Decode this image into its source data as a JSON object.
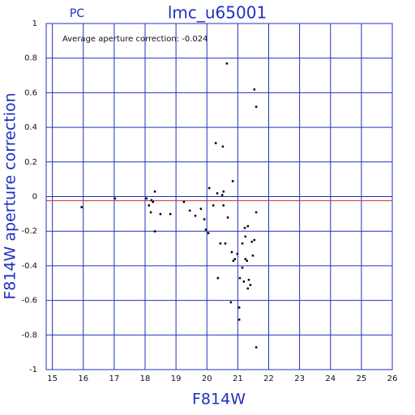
{
  "chart_data": {
    "type": "scatter",
    "title": "lmc_u65001",
    "subtitle": "PC",
    "annotation": "Average aperture correction: -0.024",
    "reference_line": {
      "value": -0.024,
      "color": "#d03020"
    },
    "x_label": "F814W",
    "y_label": "F814W aperture correction",
    "xlim": [
      14.8,
      26
    ],
    "ylim": [
      -1,
      1
    ],
    "xticks": [
      15,
      16,
      17,
      18,
      19,
      20,
      21,
      22,
      23,
      24,
      25,
      26
    ],
    "yticks": [
      -1,
      -0.8,
      -0.6,
      -0.4,
      -0.2,
      0,
      0.2,
      0.4,
      0.6,
      0.8,
      1
    ],
    "grid": true,
    "grid_color": "#2030c0",
    "color": "#000000",
    "x": [
      15.94,
      17.02,
      18.04,
      18.12,
      18.2,
      18.25,
      18.31,
      18.18,
      18.31,
      18.49,
      18.81,
      19.25,
      19.44,
      19.62,
      19.8,
      19.91,
      19.96,
      20.07,
      20.04,
      20.2,
      20.28,
      20.33,
      20.35,
      20.43,
      20.49,
      20.51,
      20.53,
      20.53,
      20.59,
      20.64,
      20.67,
      20.77,
      20.83,
      20.8,
      20.85,
      20.9,
      20.98,
      21.04,
      21.04,
      21.06,
      21.14,
      21.14,
      21.19,
      21.24,
      21.22,
      21.24,
      21.32,
      21.29,
      21.32,
      21.35,
      21.4,
      21.45,
      21.48,
      21.53,
      21.59,
      21.53,
      21.59,
      21.59
    ],
    "y": [
      -0.06,
      -0.01,
      -0.01,
      -0.05,
      -0.02,
      -0.03,
      0.03,
      -0.09,
      -0.2,
      -0.1,
      -0.1,
      -0.03,
      -0.08,
      -0.11,
      -0.07,
      -0.13,
      -0.19,
      0.05,
      -0.21,
      -0.05,
      0.31,
      0.02,
      -0.47,
      -0.27,
      0.01,
      0.29,
      0.03,
      -0.05,
      -0.27,
      0.77,
      -0.12,
      -0.61,
      0.09,
      -0.32,
      -0.37,
      -0.36,
      -0.33,
      -0.71,
      -0.64,
      -0.47,
      -0.27,
      -0.41,
      -0.49,
      -0.23,
      -0.18,
      -0.36,
      -0.17,
      -0.37,
      -0.53,
      -0.48,
      -0.51,
      -0.26,
      -0.34,
      0.62,
      0.52,
      -0.25,
      -0.09,
      -0.87
    ]
  }
}
